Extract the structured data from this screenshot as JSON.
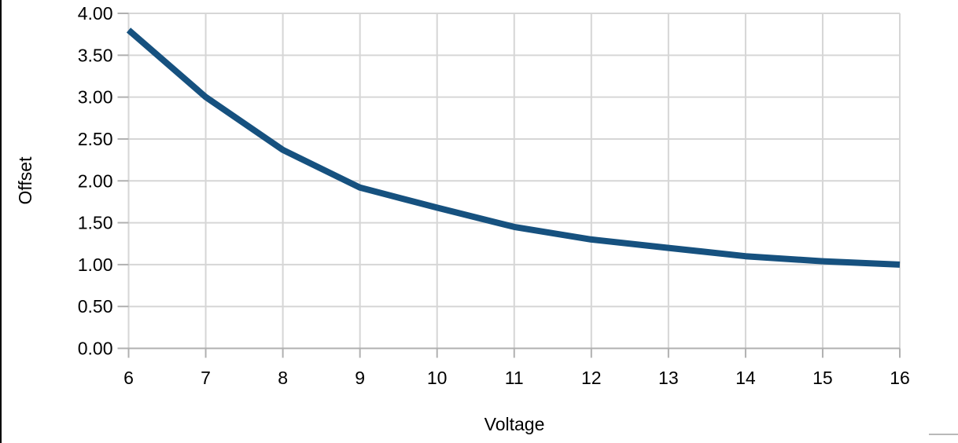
{
  "chart_data": {
    "type": "line",
    "title": "",
    "xlabel": "Voltage",
    "ylabel": "Offset",
    "x": [
      6,
      7,
      8,
      9,
      10,
      11,
      12,
      13,
      14,
      15,
      16
    ],
    "series": [
      {
        "name": "Offset",
        "values": [
          3.8,
          3.0,
          2.37,
          1.92,
          1.68,
          1.45,
          1.3,
          1.2,
          1.1,
          1.04,
          1.0
        ]
      }
    ],
    "xlim": [
      6,
      16
    ],
    "ylim": [
      0,
      4
    ],
    "x_tick_labels": [
      "6",
      "7",
      "8",
      "9",
      "10",
      "11",
      "12",
      "13",
      "14",
      "15",
      "16"
    ],
    "y_tick_values": [
      0,
      0.5,
      1,
      1.5,
      2,
      2.5,
      3,
      3.5,
      4
    ],
    "y_tick_labels": [
      "0.00",
      "0.50",
      "1.00",
      "1.50",
      "2.00",
      "2.50",
      "3.00",
      "3.50",
      "4.00"
    ],
    "grid": true,
    "legend": "none",
    "line_width": 8,
    "colors": {
      "line": "#16517f",
      "grid": "#d6d6d6",
      "axis": "#b0b0b0",
      "text": "#000000",
      "page_edge": "#000000",
      "cropped_edge": "#b9b9b9"
    }
  }
}
